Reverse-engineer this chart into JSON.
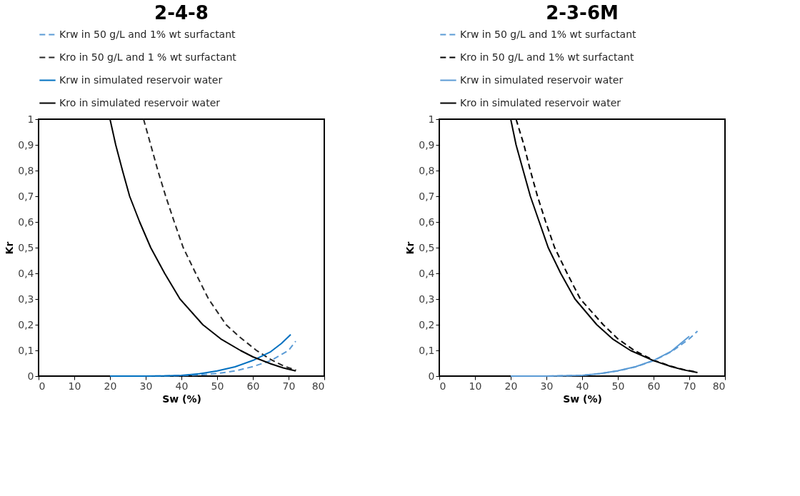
{
  "chart_data": [
    {
      "type": "line",
      "title": "2-4-8",
      "xlabel": "Sw (%)",
      "ylabel": "Kr",
      "xlim": [
        0,
        80
      ],
      "xticks": [
        0,
        10,
        20,
        30,
        40,
        50,
        60,
        70,
        80
      ],
      "ylim": [
        0,
        1
      ],
      "yticks": [
        0,
        {
          "value": 0.1,
          "label": "0,1"
        },
        {
          "value": 0.2,
          "label": "0,2"
        },
        {
          "value": 0.3,
          "label": "0,3"
        },
        {
          "value": 0.4,
          "label": "0,4"
        },
        {
          "value": 0.5,
          "label": "0,5"
        },
        {
          "value": 0.6,
          "label": "0,6"
        },
        {
          "value": 0.7,
          "label": "0,7"
        },
        {
          "value": 0.8,
          "label": "0,8"
        },
        {
          "value": 0.9,
          "label": "0,9"
        },
        1
      ],
      "legend": "top",
      "grid": false,
      "marker": "none",
      "series": [
        {
          "name": "Krw in 50 g/L and 1% wt surfactant",
          "color": "#5b9bd5",
          "line_style": "dashed",
          "x": [
            30,
            40,
            45,
            50,
            55,
            60,
            65,
            70,
            72
          ],
          "values": [
            0,
            0.002,
            0.005,
            0.01,
            0.02,
            0.037,
            0.06,
            0.1,
            0.136
          ]
        },
        {
          "name": "Kro in 50 g/L and 1 % wt surfactant",
          "color": "#262626",
          "line_style": "dashed",
          "x": [
            29.4,
            31.4,
            33.4,
            35.6,
            38,
            40.5,
            44,
            47.6,
            52.5,
            56.5,
            61,
            65,
            68.5,
            72.1
          ],
          "values": [
            1,
            0.9,
            0.8,
            0.7,
            0.6,
            0.5,
            0.4,
            0.3,
            0.2,
            0.15,
            0.1,
            0.065,
            0.04,
            0.023
          ]
        },
        {
          "name": "Krw in simulated reservoir water",
          "color": "#0070c0",
          "line_style": "solid",
          "x": [
            20,
            30,
            35,
            40,
            45,
            50,
            55,
            60,
            65,
            68,
            70.6
          ],
          "values": [
            0,
            0,
            0.001,
            0.003,
            0.009,
            0.02,
            0.036,
            0.061,
            0.095,
            0.127,
            0.162
          ]
        },
        {
          "name": "Kro in simulated reservoir water",
          "color": "#000000",
          "line_style": "solid",
          "x": [
            20,
            21.6,
            23.5,
            25.5,
            28.3,
            31.4,
            35.3,
            39.6,
            46,
            51,
            56.5,
            60,
            65,
            68.5,
            72
          ],
          "values": [
            1,
            0.9,
            0.8,
            0.7,
            0.6,
            0.5,
            0.4,
            0.3,
            0.2,
            0.145,
            0.1,
            0.075,
            0.048,
            0.032,
            0.02
          ]
        }
      ]
    },
    {
      "type": "line",
      "title": "2-3-6M",
      "xlabel": "Sw (%)",
      "ylabel": "Kr",
      "xlim": [
        0,
        80
      ],
      "xticks": [
        0,
        10,
        20,
        30,
        40,
        50,
        60,
        70,
        80
      ],
      "ylim": [
        0,
        1
      ],
      "yticks": [
        0,
        {
          "value": 0.1,
          "label": "0,1"
        },
        {
          "value": 0.2,
          "label": "0,2"
        },
        {
          "value": 0.3,
          "label": "0,3"
        },
        {
          "value": 0.4,
          "label": "0,4"
        },
        {
          "value": 0.5,
          "label": "0,5"
        },
        {
          "value": 0.6,
          "label": "0,6"
        },
        {
          "value": 0.7,
          "label": "0,7"
        },
        {
          "value": 0.8,
          "label": "0,8"
        },
        {
          "value": 0.9,
          "label": "0,9"
        },
        1
      ],
      "legend": "top",
      "grid": false,
      "marker": "none",
      "series": [
        {
          "name": "Krw in 50 g/L and 1% wt surfactant",
          "color": "#5b9bd5",
          "line_style": "dashed",
          "x": [
            20,
            30,
            40,
            45,
            50,
            55,
            60,
            65,
            70,
            72.3
          ],
          "values": [
            0,
            0,
            0.003,
            0.01,
            0.02,
            0.036,
            0.06,
            0.095,
            0.145,
            0.175
          ]
        },
        {
          "name": "Kro in 50 g/L and 1% wt surfactant",
          "color": "#000000",
          "line_style": "dashed",
          "x": [
            21.5,
            23.7,
            25.5,
            27.5,
            29.8,
            32.3,
            35.8,
            39.5,
            45.9,
            50,
            54.6,
            60,
            65,
            68.5,
            72.3
          ],
          "values": [
            1,
            0.9,
            0.8,
            0.7,
            0.6,
            0.5,
            0.4,
            0.3,
            0.2,
            0.145,
            0.1,
            0.062,
            0.038,
            0.025,
            0.015
          ]
        },
        {
          "name": "Krw in simulated reservoir water",
          "color": "#5b9bd5",
          "line_style": "solid",
          "x": [
            20,
            30,
            40,
            45,
            50,
            55,
            60,
            65,
            70
          ],
          "values": [
            0,
            0,
            0.003,
            0.01,
            0.021,
            0.037,
            0.061,
            0.097,
            0.155
          ]
        },
        {
          "name": "Kro in simulated reservoir water",
          "color": "#000000",
          "line_style": "solid",
          "x": [
            20,
            21.5,
            23.5,
            25.5,
            28,
            30.5,
            34,
            38,
            44.1,
            48.5,
            53.5,
            60,
            65,
            68.5,
            72.3
          ],
          "values": [
            1,
            0.9,
            0.8,
            0.7,
            0.6,
            0.5,
            0.4,
            0.3,
            0.2,
            0.145,
            0.1,
            0.06,
            0.037,
            0.024,
            0.014
          ]
        }
      ]
    }
  ]
}
